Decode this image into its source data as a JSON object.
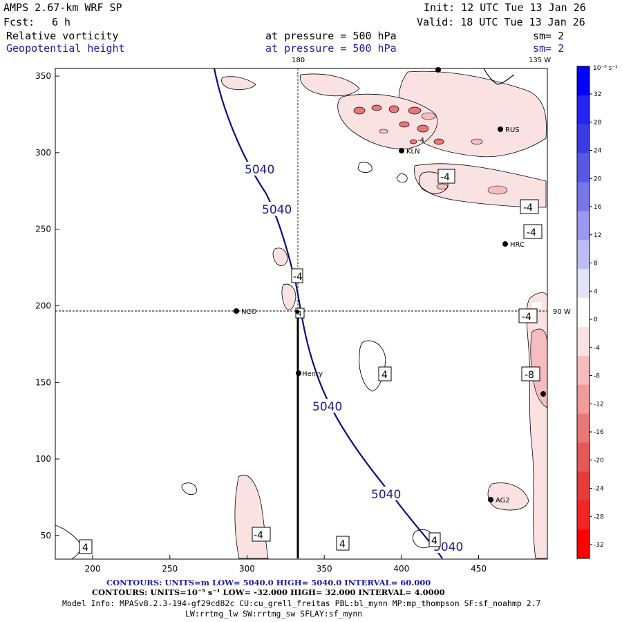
{
  "header": {
    "model": "AMPS 2.67-km WRF SP",
    "init": "Init: 12 UTC Tue 13 Jan 26",
    "fcst_label": "Fcst:",
    "fcst_value": "6 h",
    "valid": "Valid: 18 UTC Tue 13 Jan 26",
    "field1": "Relative vorticity",
    "field1_level": "at pressure =  500 hPa",
    "field1_sm": "sm= 2",
    "field2": "Geopotential height",
    "field2_level": "at pressure =  500 hPa",
    "field2_sm": "sm= 2"
  },
  "map": {
    "meridian_top_label": "180",
    "meridian_right_top_label": "135 W",
    "parallel_right_label": "90 W",
    "x_ticks": [
      "200",
      "250",
      "300",
      "350",
      "400",
      "450"
    ],
    "y_ticks": [
      "50",
      "100",
      "150",
      "200",
      "250",
      "300",
      "350"
    ],
    "stations": [
      {
        "name": "NCO"
      },
      {
        "name": "Henry"
      },
      {
        "name": "KLN"
      },
      {
        "name": "RUS"
      },
      {
        "name": "HRC"
      },
      {
        "name": "AG2"
      }
    ],
    "height_labels": [
      "5040",
      "5040",
      "5040",
      "5040",
      "5040"
    ],
    "vort_labels": [
      "-4",
      "-4",
      "-4",
      "-4",
      "-4",
      "-8",
      "-4",
      "4",
      "4",
      "4",
      "4",
      "4",
      "-4"
    ]
  },
  "colorbar": {
    "unit": "10⁻⁵ s⁻¹",
    "ticks": [
      "32",
      "28",
      "24",
      "20",
      "16",
      "12",
      "8",
      "4",
      "0",
      "-4",
      "-8",
      "-12",
      "-16",
      "-20",
      "-24",
      "-28",
      "-32"
    ],
    "colors": [
      "#0000ff",
      "#2424f2",
      "#3b3be6",
      "#5858e6",
      "#7777ea",
      "#9a9af0",
      "#bdbdf5",
      "#e2e2fa",
      "#ffffff",
      "#fbe2e2",
      "#f5bdbd",
      "#f09a9a",
      "#ea7777",
      "#e65858",
      "#e63b3b",
      "#f22424",
      "#ff0000"
    ]
  },
  "footer": {
    "line1_blue": "CONTOURS:  UNITS=m  LOW=  5040.0          HIGH=  5040.0          INTERVAL=   60.000",
    "line2_black": "CONTOURS:  UNITS=10⁻⁵ s⁻¹  LOW= -32.000          HIGH=  32.000          INTERVAL=   4.0000",
    "line3": "Model Info: MPASv8.2.3-194-gf29cd82c CU:cu_grell_freitas PBL:bl_mynn MP:mp_thompson SF:sf_noahmp 2.7",
    "line4": "LW:rrtmg_lw SW:rrtmg_sw SFLAY:sf_mynn"
  },
  "colors": {
    "height_contour": "#0a0a80",
    "vort_fill_light": "#fbe2e2",
    "vort_fill_mid": "#f5bdbd",
    "vort_fill_dark": "#ea7777"
  }
}
